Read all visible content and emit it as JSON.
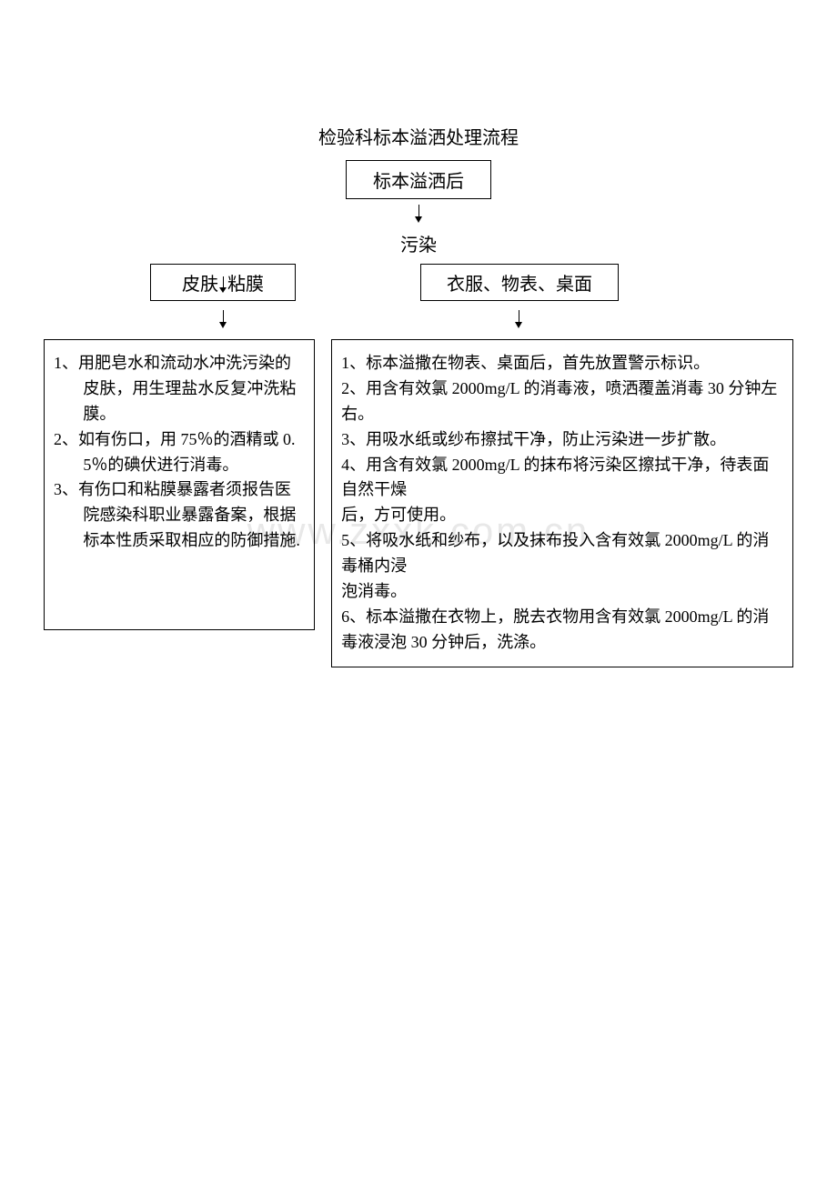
{
  "title": "检验科标本溢洒处理流程",
  "start": "标本溢洒后",
  "contaminate": "污染",
  "branch_left_a": "皮肤",
  "branch_left_b": "粘膜",
  "branch_right": "衣服、物表、桌面",
  "left_items": {
    "l1": "1、用肥皂水和流动水冲洗污染的皮肤，用生理盐水反复冲洗粘膜。",
    "l2": "2、如有伤口，用 75％的酒精或 0. 5％的碘伏进行消毒。",
    "l3": "3、有伤口和粘膜暴露者须报告医院感染科职业暴露备案，根据标本性质采取相应的防御措施."
  },
  "right_items": {
    "r1": "1、标本溢撒在物表、桌面后，首先放置警示标识。",
    "r2": "2、用含有效氯 2000mg/L 的消毒液，喷洒覆盖消毒 30 分钟左右。",
    "r3": "3、用吸水纸或纱布擦拭干净，防止污染进一步扩散。",
    "r4a": "4、用含有效氯 2000mg/L 的抹布将污染区擦拭干净，待表面自然干燥",
    "r4b": "后，方可使用。",
    "r5a": "5、将吸水纸和纱布，以及抹布投入含有效氯 2000mg/L 的消毒桶内浸",
    "r5b": "泡消毒。",
    "r6": "6、标本溢撒在衣物上，脱去衣物用含有效氯 2000mg/L 的消毒液浸泡 30 分钟后，洗涤。"
  },
  "watermark": "www.zxxk.com.cn",
  "colors": {
    "text": "#000000",
    "border": "#000000",
    "background": "#ffffff",
    "watermark": "#e8e8e8"
  },
  "font_size": {
    "title": 20,
    "node": 20,
    "body": 18
  }
}
